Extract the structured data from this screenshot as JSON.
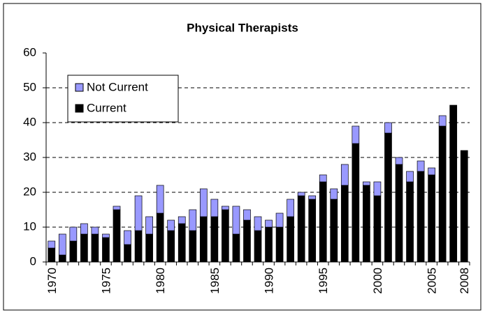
{
  "chart_data": {
    "type": "stacked_bar",
    "title": "Physical Therapists",
    "categories": [
      "1970",
      null,
      null,
      null,
      null,
      "1975",
      null,
      null,
      null,
      null,
      "1980",
      null,
      null,
      null,
      null,
      "1985",
      null,
      null,
      null,
      null,
      "1990",
      null,
      null,
      null,
      null,
      "1995",
      null,
      null,
      null,
      null,
      "2000",
      null,
      null,
      null,
      null,
      "2005",
      null,
      null,
      "2008"
    ],
    "series": [
      {
        "name": "Current",
        "color": "#000000",
        "values": [
          4,
          2,
          6,
          8,
          8,
          7,
          15,
          5,
          9,
          8,
          14,
          9,
          11,
          9,
          13,
          13,
          15,
          8,
          12,
          9,
          10,
          10,
          13,
          19,
          18,
          23,
          18,
          22,
          34,
          22,
          19,
          37,
          28,
          23,
          26,
          25,
          39,
          45,
          32
        ]
      },
      {
        "name": "Not Current",
        "color": "#9999ff",
        "values": [
          2,
          6,
          4,
          3,
          2,
          1,
          1,
          4,
          10,
          5,
          8,
          3,
          2,
          6,
          8,
          5,
          1,
          8,
          3,
          4,
          2,
          4,
          5,
          1,
          1,
          2,
          3,
          6,
          5,
          1,
          4,
          3,
          2,
          3,
          3,
          2,
          3,
          0,
          0
        ]
      }
    ],
    "ylim": [
      0,
      60
    ],
    "yticks": [
      0,
      10,
      20,
      30,
      40,
      50,
      60
    ],
    "grid": true,
    "legend": "upper left"
  }
}
